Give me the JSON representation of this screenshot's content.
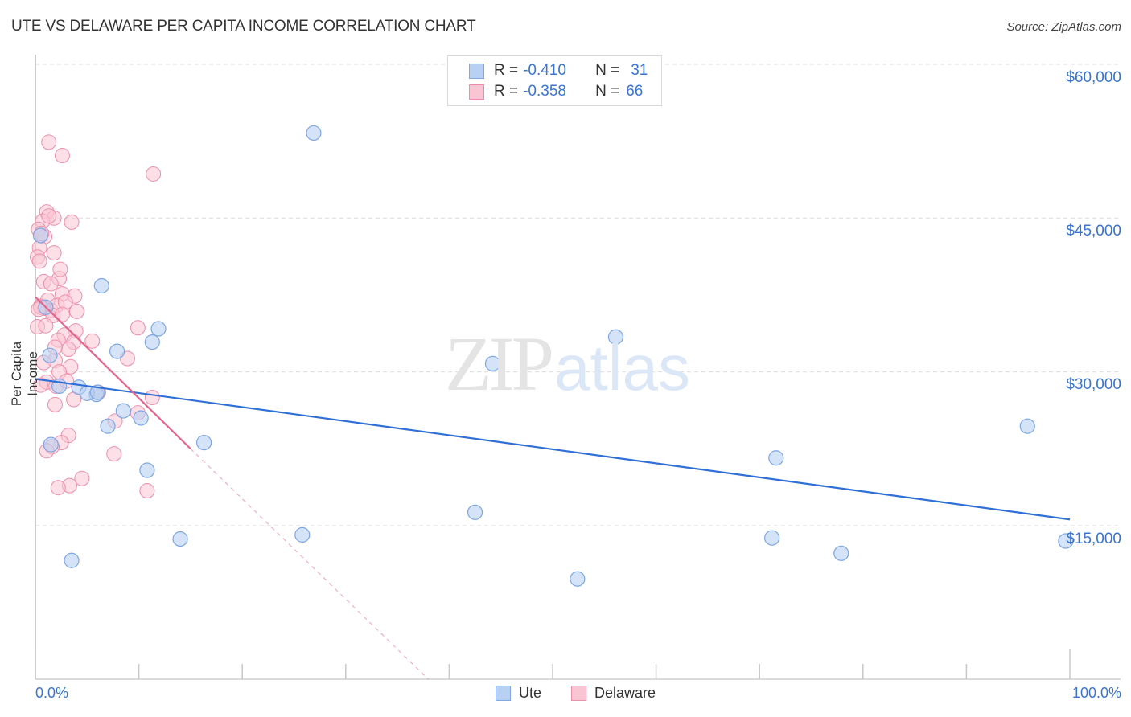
{
  "header": {
    "title": "UTE VS DELAWARE PER CAPITA INCOME CORRELATION CHART",
    "source": "Source: ZipAtlas.com"
  },
  "legend": {
    "series": [
      {
        "name": "Ute",
        "r_label": "R =",
        "r_value": "-0.410",
        "n_label": "N =",
        "n_value": "31",
        "fill": "#b8d0f2",
        "stroke": "#7ea7e3"
      },
      {
        "name": "Delaware",
        "r_label": "R =",
        "r_value": "-0.358",
        "n_label": "N =",
        "n_value": "66",
        "fill": "#f9c4d4",
        "stroke": "#ec8fab"
      }
    ]
  },
  "axes": {
    "ylabel": "Per Capita Income",
    "yticks": [
      "$60,000",
      "$45,000",
      "$30,000",
      "$15,000"
    ],
    "xticks": [
      "0.0%",
      "100.0%"
    ]
  },
  "watermark": {
    "zip": "ZIP",
    "atlas": "atlas"
  },
  "colors": {
    "ute_line": "#2f6fd6",
    "delaware_line": "#e4648d",
    "tick_text": "#3a74d0"
  },
  "chart_data": {
    "type": "scatter",
    "title": "UTE VS DELAWARE PER CAPITA INCOME CORRELATION CHART",
    "xlabel": "",
    "ylabel": "Per Capita Income",
    "xlim": [
      0,
      100
    ],
    "ylim": [
      0,
      62000
    ],
    "x_tick_labels": [
      "0.0%",
      "100.0%"
    ],
    "y_tick_labels": [
      "$15,000",
      "$30,000",
      "$45,000",
      "$60,000"
    ],
    "grid": true,
    "legend_position": "top-center",
    "series": [
      {
        "name": "Ute",
        "r": -0.41,
        "n": 31,
        "color": "#7ea7e3",
        "points": [
          [
            26.9,
            53300
          ],
          [
            6.4,
            38400
          ],
          [
            11.9,
            34200
          ],
          [
            11.3,
            32900
          ],
          [
            7.9,
            32000
          ],
          [
            1.4,
            31600
          ],
          [
            0.5,
            43300
          ],
          [
            2.3,
            28600
          ],
          [
            4.2,
            28500
          ],
          [
            5.9,
            27800
          ],
          [
            5.0,
            27900
          ],
          [
            8.5,
            26200
          ],
          [
            10.2,
            25500
          ],
          [
            7.0,
            24700
          ],
          [
            16.3,
            23100
          ],
          [
            1.5,
            22900
          ],
          [
            10.8,
            20400
          ],
          [
            44.2,
            30800
          ],
          [
            56.1,
            33400
          ],
          [
            71.6,
            21600
          ],
          [
            95.9,
            24700
          ],
          [
            42.5,
            16300
          ],
          [
            25.8,
            14100
          ],
          [
            14.0,
            13700
          ],
          [
            71.2,
            13800
          ],
          [
            77.9,
            12300
          ],
          [
            52.4,
            9800
          ],
          [
            3.5,
            11600
          ],
          [
            99.6,
            13500
          ],
          [
            1.0,
            36300
          ],
          [
            6.0,
            28000
          ]
        ],
        "trend": {
          "x": [
            0,
            100
          ],
          "y": [
            29300,
            15600
          ]
        }
      },
      {
        "name": "Delaware",
        "r": -0.358,
        "n": 66,
        "color": "#ec8fab",
        "points": [
          [
            1.3,
            52400
          ],
          [
            2.6,
            51100
          ],
          [
            11.4,
            49300
          ],
          [
            1.1,
            45600
          ],
          [
            1.8,
            45000
          ],
          [
            0.7,
            44700
          ],
          [
            3.5,
            44600
          ],
          [
            0.3,
            43900
          ],
          [
            0.9,
            43200
          ],
          [
            0.4,
            42100
          ],
          [
            0.2,
            41200
          ],
          [
            1.8,
            41600
          ],
          [
            0.4,
            40800
          ],
          [
            0.8,
            38800
          ],
          [
            2.3,
            39100
          ],
          [
            1.2,
            37000
          ],
          [
            2.6,
            37600
          ],
          [
            3.8,
            37400
          ],
          [
            0.5,
            36400
          ],
          [
            0.9,
            36200
          ],
          [
            1.5,
            36000
          ],
          [
            2.1,
            36500
          ],
          [
            2.9,
            36800
          ],
          [
            1.7,
            35500
          ],
          [
            2.6,
            35600
          ],
          [
            0.2,
            34400
          ],
          [
            1.0,
            34500
          ],
          [
            3.9,
            34000
          ],
          [
            2.8,
            33600
          ],
          [
            2.2,
            33100
          ],
          [
            3.7,
            32900
          ],
          [
            5.5,
            33000
          ],
          [
            3.2,
            32200
          ],
          [
            9.9,
            34300
          ],
          [
            8.9,
            31300
          ],
          [
            1.9,
            31100
          ],
          [
            3.4,
            30500
          ],
          [
            2.3,
            30000
          ],
          [
            1.1,
            29000
          ],
          [
            0.5,
            28700
          ],
          [
            2.0,
            28600
          ],
          [
            6.1,
            28000
          ],
          [
            11.3,
            27500
          ],
          [
            3.7,
            27300
          ],
          [
            1.9,
            26800
          ],
          [
            9.9,
            26000
          ],
          [
            7.7,
            25200
          ],
          [
            3.2,
            23800
          ],
          [
            2.5,
            23100
          ],
          [
            1.6,
            22700
          ],
          [
            1.1,
            22300
          ],
          [
            7.6,
            22000
          ],
          [
            4.5,
            19600
          ],
          [
            3.3,
            18900
          ],
          [
            2.2,
            18700
          ],
          [
            10.8,
            18400
          ],
          [
            0.5,
            36300
          ],
          [
            0.3,
            36100
          ],
          [
            1.3,
            45200
          ],
          [
            0.6,
            43500
          ],
          [
            2.4,
            40000
          ],
          [
            1.5,
            38600
          ],
          [
            4.0,
            35900
          ],
          [
            1.9,
            32400
          ],
          [
            3.0,
            29100
          ],
          [
            0.8,
            30900
          ]
        ],
        "trend": {
          "x": [
            0,
            15
          ],
          "y": [
            37300,
            22500
          ],
          "dashed_extension": {
            "x": [
              15,
              38
            ],
            "y": [
              22500,
              0
            ]
          }
        }
      }
    ]
  }
}
